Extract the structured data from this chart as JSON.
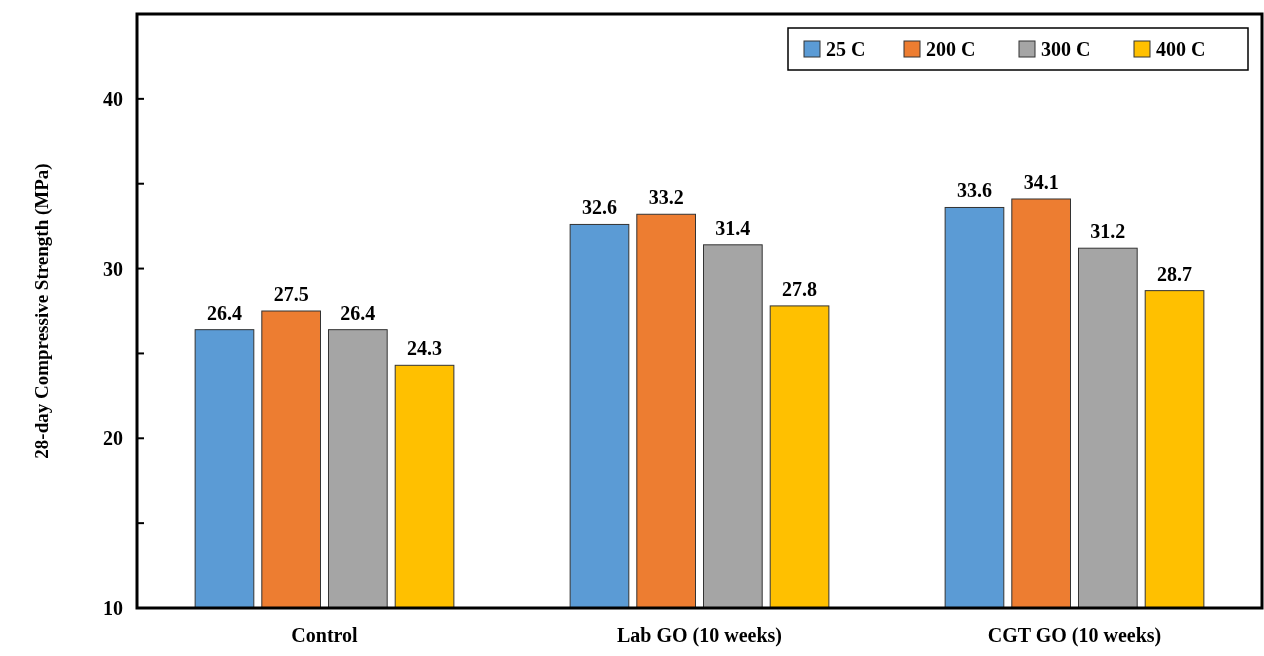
{
  "chart_data": {
    "type": "bar",
    "ylabel": "28-day Compressive Strength (MPa)",
    "categories": [
      "Control",
      "Lab GO (10 weeks)",
      "CGT GO (10 weeks)"
    ],
    "series": [
      {
        "name": "25 C",
        "color": "#5b9bd5",
        "values": [
          26.4,
          32.6,
          33.6
        ]
      },
      {
        "name": "200 C",
        "color": "#ed7d31",
        "values": [
          27.5,
          33.2,
          34.1
        ]
      },
      {
        "name": "300 C",
        "color": "#a5a5a5",
        "values": [
          26.4,
          31.4,
          31.2
        ]
      },
      {
        "name": "400 C",
        "color": "#ffc000",
        "values": [
          24.3,
          27.8,
          28.7
        ]
      }
    ],
    "ylim": [
      10,
      45
    ],
    "yticks": [
      10,
      {
        "value": 15,
        "label": null
      },
      20,
      {
        "value": 25,
        "label": null
      },
      30,
      {
        "value": 35,
        "label": null
      },
      40
    ],
    "data_labels": true,
    "legend": "top right",
    "grid": false
  }
}
